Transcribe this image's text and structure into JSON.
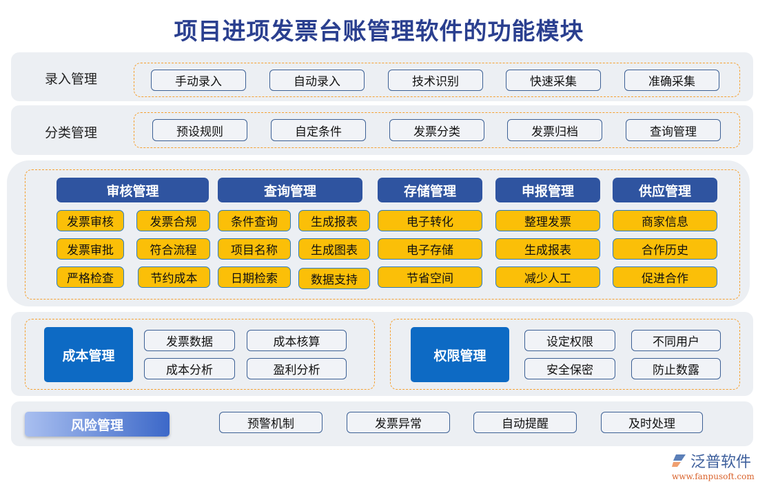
{
  "title": "项目进项发票台账管理软件的功能模块",
  "row1": {
    "label": "录入管理",
    "items": [
      "手动录入",
      "自动录入",
      "技术识别",
      "快速采集",
      "准确采集"
    ]
  },
  "row2": {
    "label": "分类管理",
    "items": [
      "预设规则",
      "自定条件",
      "发票分类",
      "发票归档",
      "查询管理"
    ]
  },
  "row3": {
    "groups": [
      {
        "header": "审核管理",
        "items": [
          "发票审核",
          "发票合规",
          "发票审批",
          "符合流程",
          "严格检查",
          "节约成本"
        ]
      },
      {
        "header": "查询管理",
        "items": [
          "条件查询",
          "生成报表",
          "项目名称",
          "生成图表",
          "日期检索",
          "数据支持"
        ]
      },
      {
        "header": "存储管理",
        "items": [
          "电子转化",
          "电子存储",
          "节省空间"
        ]
      },
      {
        "header": "申报管理",
        "items": [
          "整理发票",
          "生成报表",
          "减少人工"
        ]
      },
      {
        "header": "供应管理",
        "items": [
          "商家信息",
          "合作历史",
          "促进合作"
        ]
      }
    ]
  },
  "row4": {
    "left": {
      "label": "成本管理",
      "items": [
        "发票数据",
        "成本核算",
        "成本分析",
        "盈利分析"
      ]
    },
    "right": {
      "label": "权限管理",
      "items": [
        "设定权限",
        "不同用户",
        "安全保密",
        "防止数露"
      ]
    }
  },
  "row5": {
    "label": "风险管理",
    "items": [
      "预警机制",
      "发票异常",
      "自动提醒",
      "及时处理"
    ]
  },
  "logo": {
    "name": "泛普软件",
    "url": "www.fanpusoft.com",
    "icon": "fanpu-logo-icon"
  },
  "colors": {
    "header_blue": "#2f54a0",
    "yellow": "#fbbf08",
    "accent_orange": "#f5a030",
    "module_blue": "#0d6ac4"
  }
}
